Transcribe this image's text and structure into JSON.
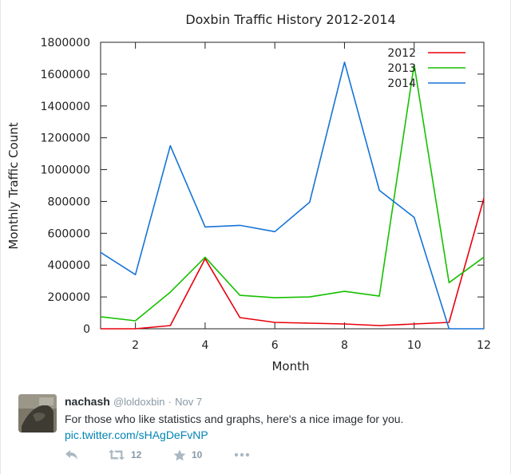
{
  "chart_data": {
    "type": "line",
    "title": "Doxbin Traffic History 2012-2014",
    "xlabel": "Month",
    "ylabel": "Monthly Traffic Count",
    "xlim": [
      1,
      12
    ],
    "ylim": [
      0,
      1800000
    ],
    "xticks": [
      2,
      4,
      6,
      8,
      10,
      12
    ],
    "yticks": [
      0,
      200000,
      400000,
      600000,
      800000,
      1000000,
      1200000,
      1400000,
      1600000,
      1800000
    ],
    "grid": false,
    "legend": "top-right",
    "x": [
      1,
      2,
      3,
      4,
      5,
      6,
      7,
      8,
      9,
      10,
      11,
      12
    ],
    "series": [
      {
        "name": "2012",
        "color": "#e8000b",
        "values": [
          0,
          0,
          20000,
          440000,
          70000,
          40000,
          35000,
          30000,
          20000,
          30000,
          40000,
          820000
        ]
      },
      {
        "name": "2013",
        "color": "#16c000",
        "values": [
          75000,
          50000,
          230000,
          450000,
          210000,
          195000,
          200000,
          235000,
          205000,
          1660000,
          290000,
          450000
        ]
      },
      {
        "name": "2014",
        "color": "#1574d6",
        "values": [
          480000,
          340000,
          1150000,
          640000,
          650000,
          610000,
          795000,
          1675000,
          870000,
          700000,
          0,
          0
        ]
      }
    ]
  },
  "tweet": {
    "author_name": "nachash",
    "handle": "@loldoxbin",
    "separator": "·",
    "time": "Nov 7",
    "text": "For those who like statistics and graphs, here's a nice image for you.",
    "link": "pic.twitter.com/sHAgDeFvNP",
    "retweets": "12",
    "favorites": "10",
    "icons": {
      "reply": "reply-icon",
      "retweet": "retweet-icon",
      "favorite": "star-icon",
      "more": "more-icon"
    }
  }
}
